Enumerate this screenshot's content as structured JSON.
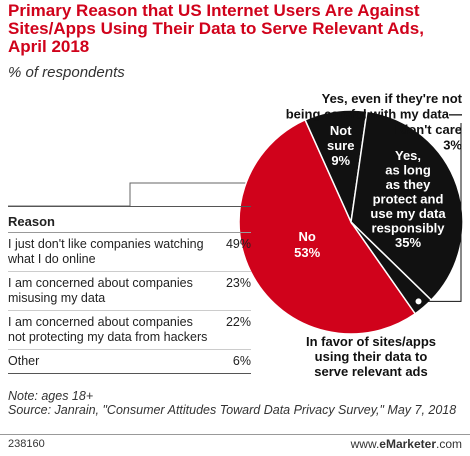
{
  "header": {
    "title": "Primary Reason that US Internet Users Are Against Sites/Apps Using Their Data to Serve Relevant Ads, April 2018",
    "subtitle": "% of respondents"
  },
  "chart_data": {
    "type": "pie",
    "slices": [
      {
        "label_lines": [
          "No",
          "53%"
        ],
        "value": 53,
        "color": "#d0021b"
      },
      {
        "label_lines": [
          "Not",
          "sure",
          "9%"
        ],
        "value": 9,
        "color": "#111111"
      },
      {
        "label_lines": [
          "Yes,",
          "as long",
          "as they",
          "protect and",
          "use my data",
          "responsibly",
          "35%"
        ],
        "value": 35,
        "color": "#111111"
      },
      {
        "label_lines": [
          "Yes, even if they're not",
          "being careful with my data—",
          "I don't care",
          "3%"
        ],
        "value": 3,
        "color": "#111111"
      }
    ],
    "annotation_lines": [
      "In favor of sites/apps",
      "using their data to",
      "serve relevant ads"
    ]
  },
  "table": {
    "header": "Reason",
    "rows": [
      {
        "label": "I just don't like companies watching what I do online",
        "value": "49%"
      },
      {
        "label": "I am concerned about companies misusing my data",
        "value": "23%"
      },
      {
        "label": "I am concerned about companies not protecting my data from hackers",
        "value": "22%"
      },
      {
        "label": "Other",
        "value": "6%"
      }
    ]
  },
  "footer": {
    "note": "Note: ages 18+",
    "source": "Source: Janrain, \"Consumer Attitudes Toward Data Privacy Survey,\" May 7, 2018",
    "chart_id": "238160",
    "brand_prefix": "www.",
    "brand_bold": "eMarketer",
    "brand_suffix": ".com"
  }
}
